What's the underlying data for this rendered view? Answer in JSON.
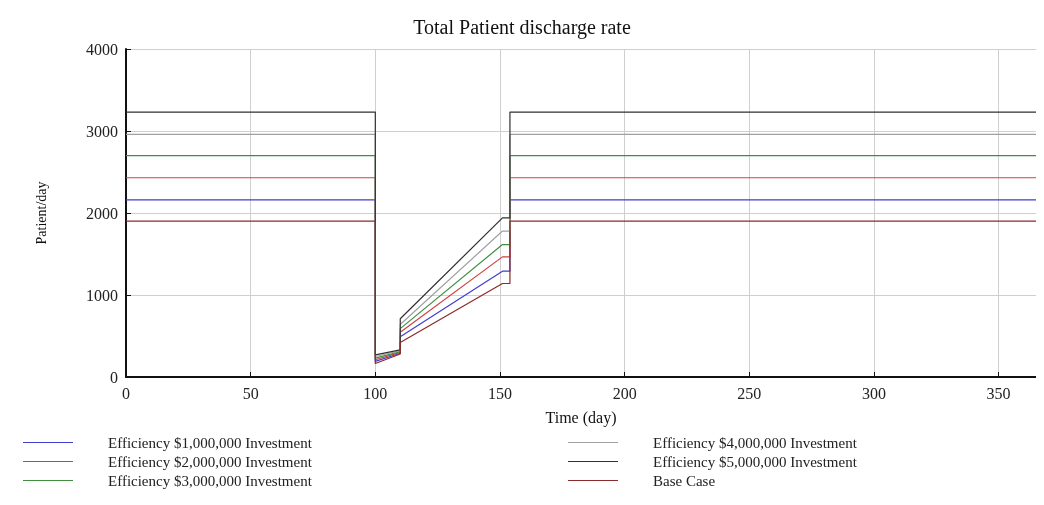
{
  "chart_data": {
    "type": "line",
    "title": "Total Patient discharge rate",
    "xlabel": "Time (day)",
    "ylabel": "Patient/day",
    "x": [
      0,
      100,
      100,
      110,
      110,
      151,
      154,
      154,
      365
    ],
    "series": [
      {
        "name": "Efficiency $1,000,000 Investment",
        "color": "#3f3fd0",
        "values": [
          2160,
          2160,
          190,
          290,
          490,
          1290,
          1290,
          2160,
          2160
        ]
      },
      {
        "name": "Efficiency $2,000,000 Investment",
        "color": "#d04040",
        "values": [
          2430,
          2430,
          210,
          300,
          545,
          1465,
          1465,
          2430,
          2430
        ]
      },
      {
        "name": "Efficiency $3,000,000 Investment",
        "color": "#3f8f3f",
        "values": [
          2700,
          2700,
          230,
          310,
          590,
          1615,
          1615,
          2700,
          2700
        ]
      },
      {
        "name": "Efficiency $4,000,000 Investment",
        "color": "#a0a0a0",
        "values": [
          2960,
          2960,
          250,
          320,
          640,
          1780,
          1780,
          2960,
          2960
        ]
      },
      {
        "name": "Efficiency $5,000,000 Investment",
        "color": "#303030",
        "values": [
          3230,
          3230,
          270,
          330,
          710,
          1940,
          1940,
          3230,
          3230
        ]
      },
      {
        "name": "Base Case",
        "color": "#8b2a2a",
        "values": [
          1900,
          1900,
          165,
          280,
          420,
          1140,
          1140,
          1900,
          1900
        ]
      }
    ],
    "xlim": [
      0,
      365
    ],
    "xticks": [
      0,
      50,
      100,
      150,
      200,
      250,
      300,
      350
    ],
    "ylim": [
      0,
      4000
    ],
    "yticks": [
      0,
      1000,
      2000,
      3000,
      4000
    ],
    "grid": true,
    "legend": "bottom",
    "marker": "none",
    "line_style": "solid"
  }
}
